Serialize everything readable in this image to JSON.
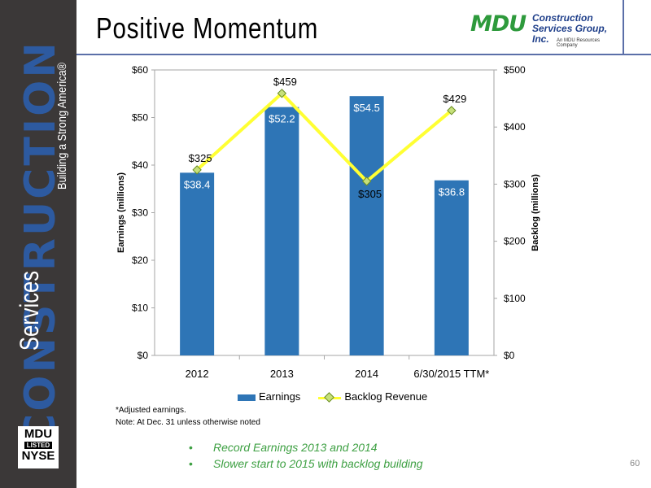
{
  "slide": {
    "title": "Positive Momentum",
    "page_number": "60"
  },
  "branding": {
    "band_main": "CONSTRUCTION",
    "band_sub": "Services",
    "tagline": "Building a Strong America®",
    "nyse_line1": "MDU",
    "nyse_line2": "LISTED",
    "nyse_line3": "NYSE",
    "logo_main": "MDU",
    "logo_line1": "Construction",
    "logo_line2": "Services Group, Inc.",
    "logo_sub": "An MDU Resources Company"
  },
  "chart_data": {
    "type": "bar",
    "categories": [
      "2012",
      "2013",
      "2014",
      "6/30/2015 TTM*"
    ],
    "series": [
      {
        "name": "Earnings",
        "type": "bar",
        "axis": "left",
        "values": [
          38.4,
          52.2,
          54.5,
          36.8
        ],
        "labels": [
          "$38.4",
          "$52.2",
          "$54.5",
          "$36.8"
        ],
        "color": "#2e75b6"
      },
      {
        "name": "Backlog Revenue",
        "type": "line",
        "axis": "right",
        "x_index": [
          0,
          1,
          2,
          3
        ],
        "values": [
          325,
          459,
          305,
          429
        ],
        "labels": [
          "$325",
          "$459",
          "$305",
          "$429"
        ],
        "color": "#ffff33",
        "marker_color": "#c6e07a"
      }
    ],
    "y_left": {
      "label": "Earnings (millions)",
      "ylim": [
        0,
        60
      ],
      "ticks": [
        "$0",
        "$10",
        "$20",
        "$30",
        "$40",
        "$50",
        "$60"
      ]
    },
    "y_right": {
      "label": "Backlog (millions)",
      "ylim": [
        0,
        500
      ],
      "ticks": [
        "$0",
        "$100",
        "$200",
        "$300",
        "$400",
        "$500"
      ]
    },
    "grid": false,
    "legend_position": "bottom"
  },
  "legend": {
    "earnings": "Earnings",
    "backlog": "Backlog Revenue"
  },
  "notes": {
    "line1": "*Adjusted earnings.",
    "line2": "Note: At Dec. 31 unless otherwise noted"
  },
  "bullets": [
    "Record Earnings 2013 and 2014",
    "Slower start to 2015 with backlog building"
  ]
}
